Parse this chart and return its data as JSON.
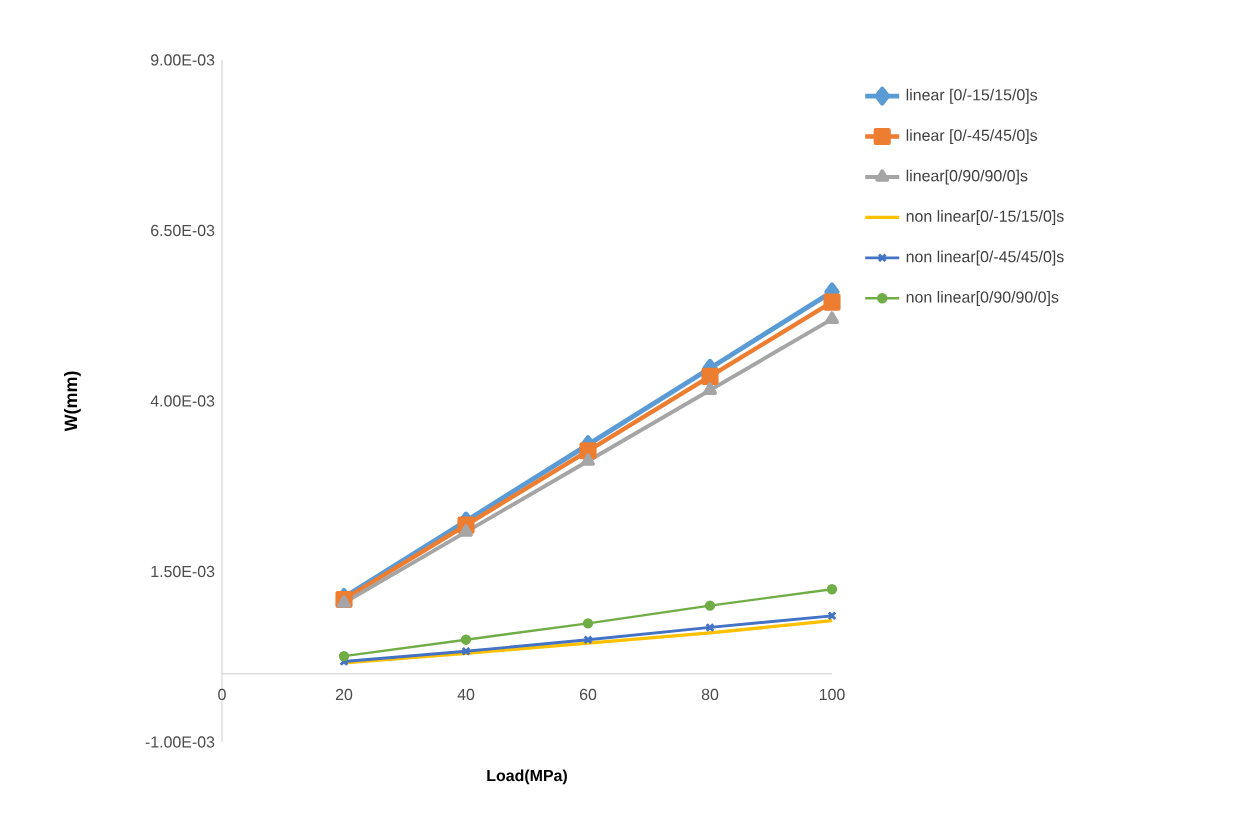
{
  "chart_data": {
    "type": "line",
    "xlabel": "Load(MPa)",
    "ylabel": "W(mm)",
    "x": [
      20,
      40,
      60,
      80,
      100
    ],
    "xlim": [
      0,
      100
    ],
    "xticks": [
      0,
      20,
      40,
      60,
      80,
      100
    ],
    "ylim": [
      -0.001,
      0.009
    ],
    "yticks": [
      {
        "value": -0.001,
        "label": "-1.00E-03"
      },
      {
        "value": 0.0015,
        "label": "1.50E-03"
      },
      {
        "value": 0.004,
        "label": "4.00E-03"
      },
      {
        "value": 0.0065,
        "label": "6.50E-03"
      },
      {
        "value": 0.009,
        "label": "9.00E-03"
      }
    ],
    "grid": false,
    "legend": "right",
    "series": [
      {
        "name": "linear [0/-15/15/0]s",
        "color": "#5b9bd5",
        "marker": "diamond",
        "values": [
          0.00112,
          0.00224,
          0.00336,
          0.00448,
          0.0056
        ]
      },
      {
        "name": "linear [0/-45/45/0]s",
        "color": "#ed7d31",
        "marker": "square",
        "values": [
          0.00109,
          0.00218,
          0.00327,
          0.00436,
          0.00545
        ]
      },
      {
        "name": "linear[0/90/90/0]s",
        "color": "#a5a5a5",
        "marker": "triangle",
        "values": [
          0.00104,
          0.00208,
          0.00312,
          0.00416,
          0.0052
        ]
      },
      {
        "name": "non linear[0/-15/15/0]s",
        "color": "#ffc000",
        "marker": "none",
        "values": [
          0.00016,
          0.0003,
          0.00045,
          0.0006,
          0.00078
        ]
      },
      {
        "name": "non linear[0/-45/45/0]s",
        "color": "#4472c4",
        "marker": "cross",
        "values": [
          0.00018,
          0.00033,
          0.0005,
          0.00068,
          0.00085
        ]
      },
      {
        "name": "non linear[0/90/90/0]s",
        "color": "#70ad47",
        "marker": "circle",
        "values": [
          0.00026,
          0.0005,
          0.00074,
          0.001,
          0.00124
        ]
      }
    ]
  }
}
